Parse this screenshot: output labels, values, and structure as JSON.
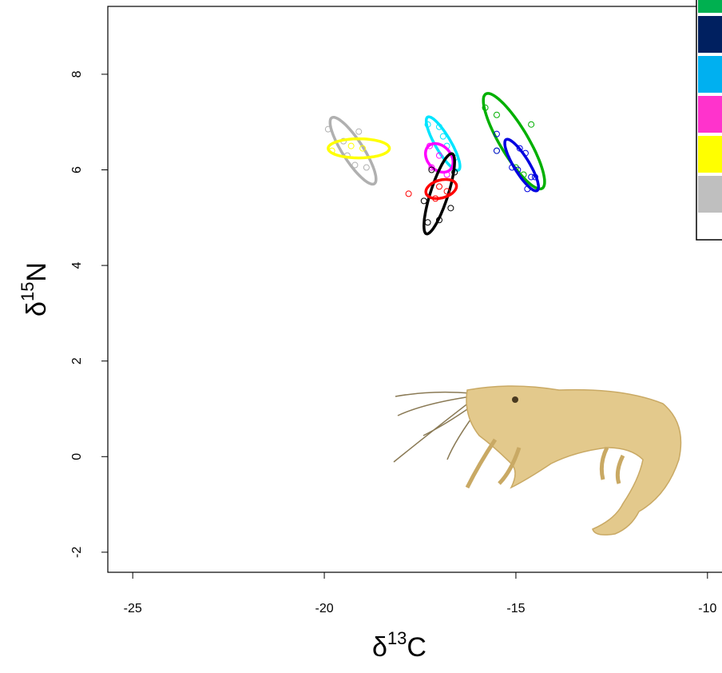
{
  "chart_data": {
    "type": "scatter",
    "xlabel": {
      "symbol": "δ",
      "sup": "13",
      "main": "C"
    },
    "ylabel": {
      "symbol": "δ",
      "sup": "15",
      "main": "N"
    },
    "xlim": [
      -25.65,
      -9.6
    ],
    "ylim": [
      -2.42,
      9.42
    ],
    "xticks": [
      -25,
      -20,
      -15,
      -10
    ],
    "yticks": [
      -2,
      0,
      2,
      4,
      6,
      8
    ],
    "legend_colors": [
      "#00b050",
      "#002060",
      "#00b0f0",
      "#ff33cc",
      "#ffff00",
      "#bfbfbf"
    ],
    "series": [
      {
        "color": "#b0b0b0",
        "x": [
          -19.9,
          -19.5,
          -19.1,
          -19.2,
          -18.9,
          -19.4
        ],
        "y": [
          6.85,
          6.6,
          6.8,
          6.1,
          6.05,
          6.3
        ],
        "ellipse": {
          "cx": -19.25,
          "cy": 6.4,
          "sx": 0.3,
          "sy": 0.35,
          "r": -0.85
        }
      },
      {
        "color": "#ffff00",
        "x": [
          -19.8,
          -19.0,
          -19.3
        ],
        "y": [
          6.4,
          6.45,
          6.5
        ],
        "ellipse": {
          "cx": -19.1,
          "cy": 6.45,
          "sx": 0.4,
          "sy": 0.1,
          "r": 0
        }
      },
      {
        "color": "#00e5ff",
        "x": [
          -17.3,
          -17.0,
          -16.6,
          -16.8,
          -16.9
        ],
        "y": [
          6.95,
          6.9,
          6.25,
          6.5,
          6.7
        ],
        "ellipse": {
          "cx": -16.9,
          "cy": 6.55,
          "sx": 0.22,
          "sy": 0.28,
          "r": -0.85
        }
      },
      {
        "color": "#ff00ff",
        "x": [
          -17.25,
          -17.2,
          -16.8,
          -17.0
        ],
        "y": [
          6.5,
          6.05,
          5.9,
          6.3
        ],
        "ellipse": {
          "cx": -17.0,
          "cy": 6.25,
          "sx": 0.18,
          "sy": 0.15,
          "r": -0.3
        }
      },
      {
        "color": "#000000",
        "x": [
          -17.4,
          -17.2,
          -16.6,
          -16.7,
          -17.0,
          -17.3
        ],
        "y": [
          5.35,
          6.0,
          5.95,
          5.2,
          4.95,
          4.9
        ],
        "ellipse": {
          "cx": -17.0,
          "cy": 5.5,
          "sx": 0.2,
          "sy": 0.42,
          "r": 0.8
        }
      },
      {
        "color": "#ff0000",
        "x": [
          -17.8,
          -17.0,
          -17.1,
          -16.8
        ],
        "y": [
          5.5,
          5.65,
          5.4,
          5.55
        ],
        "ellipse": {
          "cx": -16.95,
          "cy": 5.6,
          "sx": 0.2,
          "sy": 0.1,
          "r": 0.3
        }
      },
      {
        "color": "#00b000",
        "x": [
          -15.8,
          -15.5,
          -14.6,
          -15.5,
          -15.0,
          -14.8
        ],
        "y": [
          7.3,
          7.15,
          6.95,
          6.4,
          6.05,
          5.9
        ],
        "ellipse": {
          "cx": -15.05,
          "cy": 6.6,
          "sx": 0.4,
          "sy": 0.5,
          "r": -0.85
        }
      },
      {
        "color": "#0000e0",
        "x": [
          -15.5,
          -15.5,
          -14.9,
          -14.75,
          -15.1,
          -14.6,
          -14.7,
          -14.5,
          -14.95
        ],
        "y": [
          6.75,
          6.4,
          6.45,
          6.35,
          6.05,
          5.85,
          5.6,
          5.85,
          6.0
        ],
        "ellipse": {
          "cx": -14.85,
          "cy": 6.1,
          "sx": 0.22,
          "sy": 0.27,
          "r": -0.85
        }
      }
    ]
  }
}
